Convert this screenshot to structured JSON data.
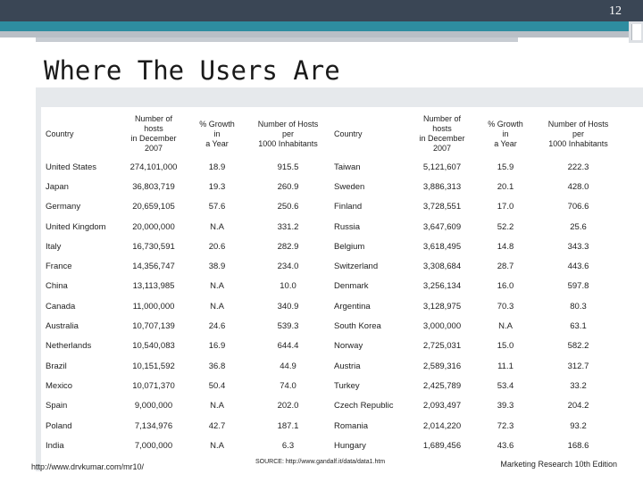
{
  "slide": {
    "page_number": "12",
    "title": "Where The Users Are"
  },
  "table": {
    "headers": [
      "Country",
      "Number of hosts in December 2007",
      "% Growth in a Year",
      "Number of Hosts per 1000 Inhabitants"
    ],
    "header_display": [
      "Country",
      "Number of\nhosts\nin December\n2007",
      "% Growth\nin\na Year",
      "Number of Hosts\nper\n1000 Inhabitants"
    ],
    "left_rows": [
      [
        "United States",
        "274,101,000",
        "18.9",
        "915.5"
      ],
      [
        "Japan",
        "36,803,719",
        "19.3",
        "260.9"
      ],
      [
        "Germany",
        "20,659,105",
        "57.6",
        "250.6"
      ],
      [
        "United Kingdom",
        "20,000,000",
        "N.A",
        "331.2"
      ],
      [
        "Italy",
        "16,730,591",
        "20.6",
        "282.9"
      ],
      [
        "France",
        "14,356,747",
        "38.9",
        "234.0"
      ],
      [
        "China",
        "13,113,985",
        "N.A",
        "10.0"
      ],
      [
        "Canada",
        "11,000,000",
        "N.A",
        "340.9"
      ],
      [
        "Australia",
        "10,707,139",
        "24.6",
        "539.3"
      ],
      [
        "Netherlands",
        "10,540,083",
        "16.9",
        "644.4"
      ],
      [
        "Brazil",
        "10,151,592",
        "36.8",
        "44.9"
      ],
      [
        "Mexico",
        "10,071,370",
        "50.4",
        "74.0"
      ],
      [
        "Spain",
        "9,000,000",
        "N.A",
        "202.0"
      ],
      [
        "Poland",
        "7,134,976",
        "42.7",
        "187.1"
      ],
      [
        "India",
        "7,000,000",
        "N.A",
        "6.3"
      ]
    ],
    "right_rows": [
      [
        "Taiwan",
        "5,121,607",
        "15.9",
        "222.3"
      ],
      [
        "Sweden",
        "3,886,313",
        "20.1",
        "428.0"
      ],
      [
        "Finland",
        "3,728,551",
        "17.0",
        "706.6"
      ],
      [
        "Russia",
        "3,647,609",
        "52.2",
        "25.6"
      ],
      [
        "Belgium",
        "3,618,495",
        "14.8",
        "343.3"
      ],
      [
        "Switzerland",
        "3,308,684",
        "28.7",
        "443.6"
      ],
      [
        "Denmark",
        "3,256,134",
        "16.0",
        "597.8"
      ],
      [
        "Argentina",
        "3,128,975",
        "70.3",
        "80.3"
      ],
      [
        "South Korea",
        "3,000,000",
        "N.A",
        "63.1"
      ],
      [
        "Norway",
        "2,725,031",
        "15.0",
        "582.2"
      ],
      [
        "Austria",
        "2,589,316",
        "11.1",
        "312.7"
      ],
      [
        "Turkey",
        "2,425,789",
        "53.4",
        "33.2"
      ],
      [
        "Czech Republic",
        "2,093,497",
        "39.3",
        "204.2"
      ],
      [
        "Romania",
        "2,014,220",
        "72.3",
        "93.2"
      ],
      [
        "Hungary",
        "1,689,456",
        "43.6",
        "168.6"
      ]
    ]
  },
  "footer": {
    "url": "http://www.drvkumar.com/mr10/",
    "source": "SOURCE: http://www.gandalf.it/data/data1.htm",
    "credit": "Marketing Research 10th Edition"
  },
  "colors": {
    "top_bar": "#3a4655",
    "accent_bar": "#2e8da0"
  }
}
